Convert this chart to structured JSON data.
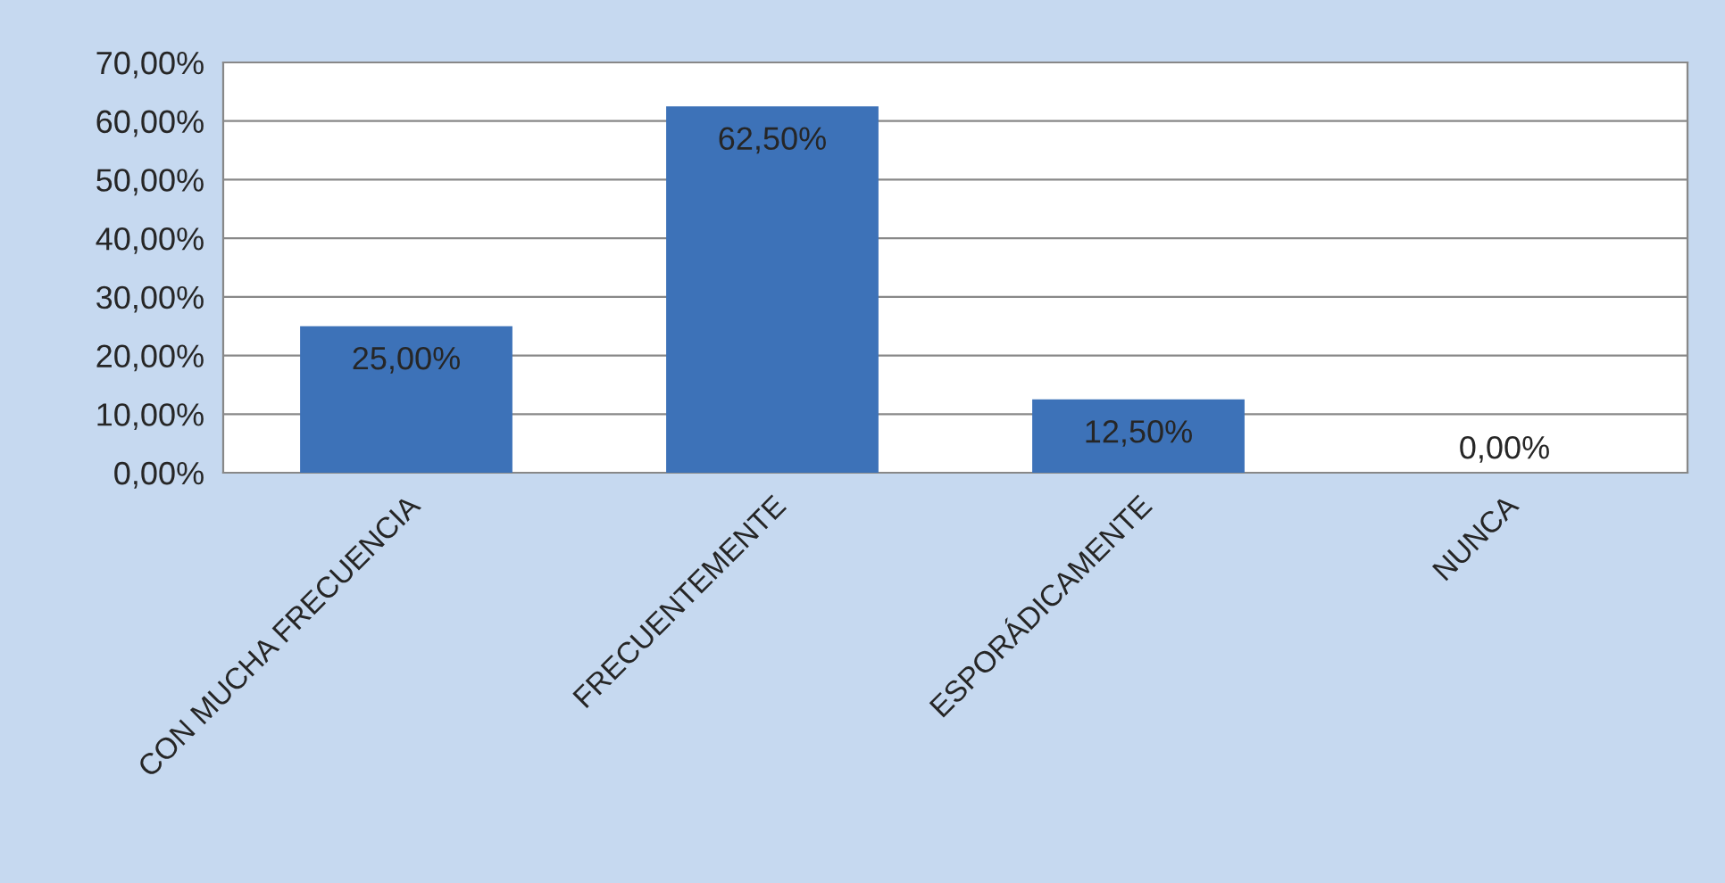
{
  "chart_data": {
    "type": "bar",
    "categories": [
      "CON MUCHA FRECUENCIA",
      "FRECUENTEMENTE",
      "ESPORÁDICAMENTE",
      "NUNCA"
    ],
    "values": [
      25,
      62.5,
      12.5,
      0
    ],
    "value_labels": [
      "25,00%",
      "62,50%",
      "12,50%",
      "0,00%"
    ],
    "color": "#3d72b8",
    "ylim": [
      0,
      70
    ],
    "yticks": [
      {
        "value": 0,
        "label": "0,00%"
      },
      {
        "value": 10,
        "label": "10,00%"
      },
      {
        "value": 20,
        "label": "20,00%"
      },
      {
        "value": 30,
        "label": "30,00%"
      },
      {
        "value": 40,
        "label": "40,00%"
      },
      {
        "value": 50,
        "label": "50,00%"
      },
      {
        "value": 60,
        "label": "60,00%"
      },
      {
        "value": 70,
        "label": "70,00%"
      }
    ],
    "grid": "y",
    "legend": false
  }
}
